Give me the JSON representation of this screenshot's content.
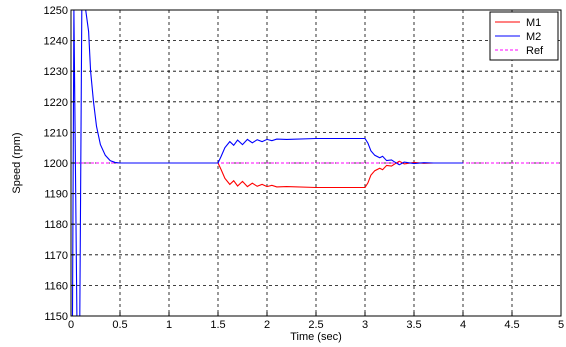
{
  "chart_data": {
    "type": "line",
    "title": "",
    "xlabel": "Time (sec)",
    "ylabel": "Speed (rpm)",
    "xlim": [
      0,
      5
    ],
    "ylim": [
      1150,
      1250
    ],
    "x_ticks": [
      "0",
      "0.5",
      "1",
      "1.5",
      "2",
      "2.5",
      "3",
      "3.5",
      "4",
      "4.5",
      "5"
    ],
    "y_ticks": [
      "1150",
      "1160",
      "1170",
      "1180",
      "1190",
      "1200",
      "1210",
      "1220",
      "1230",
      "1240",
      "1250"
    ],
    "grid": true,
    "legend_position": "top-right",
    "series": [
      {
        "name": "M1",
        "color": "#ff0000",
        "style": "solid",
        "points": [
          [
            1.5,
            1200
          ],
          [
            1.53,
            1198
          ],
          [
            1.57,
            1195
          ],
          [
            1.62,
            1193
          ],
          [
            1.66,
            1194.2
          ],
          [
            1.7,
            1192.5
          ],
          [
            1.75,
            1194
          ],
          [
            1.8,
            1192.3
          ],
          [
            1.85,
            1193.4
          ],
          [
            1.9,
            1192.4
          ],
          [
            1.95,
            1193
          ],
          [
            2.0,
            1192.3
          ],
          [
            2.05,
            1192.7
          ],
          [
            2.1,
            1192.2
          ],
          [
            2.2,
            1192.3
          ],
          [
            2.5,
            1192
          ],
          [
            2.8,
            1192
          ],
          [
            3.0,
            1192
          ],
          [
            3.03,
            1193.5
          ],
          [
            3.06,
            1196
          ],
          [
            3.1,
            1197.5
          ],
          [
            3.15,
            1198.3
          ],
          [
            3.18,
            1197.8
          ],
          [
            3.22,
            1199.2
          ],
          [
            3.27,
            1199
          ],
          [
            3.3,
            1199.6
          ],
          [
            3.35,
            1200.6
          ],
          [
            3.4,
            1199.7
          ],
          [
            3.5,
            1200.2
          ],
          [
            3.6,
            1199.9
          ],
          [
            3.7,
            1200
          ],
          [
            3.8,
            1200
          ],
          [
            3.9,
            1200
          ],
          [
            4.0,
            1200
          ]
        ]
      },
      {
        "name": "M2",
        "color": "#0000ff",
        "style": "solid",
        "points": [
          [
            0.0,
            1150
          ],
          [
            0.015,
            1150
          ],
          [
            0.03,
            1250
          ],
          [
            0.06,
            1150
          ],
          [
            0.09,
            1150
          ],
          [
            0.11,
            1250
          ],
          [
            0.15,
            1250
          ],
          [
            0.18,
            1243
          ],
          [
            0.2,
            1230
          ],
          [
            0.23,
            1220
          ],
          [
            0.26,
            1212
          ],
          [
            0.3,
            1206
          ],
          [
            0.35,
            1202.5
          ],
          [
            0.4,
            1200.8
          ],
          [
            0.45,
            1200.2
          ],
          [
            0.5,
            1200
          ],
          [
            1.0,
            1200
          ],
          [
            1.5,
            1200
          ],
          [
            1.53,
            1202
          ],
          [
            1.57,
            1205
          ],
          [
            1.62,
            1207
          ],
          [
            1.66,
            1205.8
          ],
          [
            1.7,
            1207.5
          ],
          [
            1.75,
            1206
          ],
          [
            1.8,
            1207.7
          ],
          [
            1.85,
            1206.6
          ],
          [
            1.9,
            1207.6
          ],
          [
            1.95,
            1207
          ],
          [
            2.0,
            1207.7
          ],
          [
            2.05,
            1207.3
          ],
          [
            2.1,
            1207.8
          ],
          [
            2.2,
            1207.7
          ],
          [
            2.5,
            1208
          ],
          [
            2.8,
            1208
          ],
          [
            3.0,
            1208
          ],
          [
            3.03,
            1206.5
          ],
          [
            3.06,
            1204
          ],
          [
            3.1,
            1202.5
          ],
          [
            3.15,
            1201.7
          ],
          [
            3.18,
            1202.2
          ],
          [
            3.22,
            1200.8
          ],
          [
            3.27,
            1201
          ],
          [
            3.3,
            1200.4
          ],
          [
            3.35,
            1199.4
          ],
          [
            3.4,
            1200.3
          ],
          [
            3.5,
            1199.8
          ],
          [
            3.6,
            1200.1
          ],
          [
            3.7,
            1200
          ],
          [
            3.8,
            1200
          ],
          [
            3.9,
            1200
          ],
          [
            4.0,
            1200
          ]
        ]
      },
      {
        "name": "Ref",
        "color": "#ff00ff",
        "style": "dashed",
        "points": [
          [
            0,
            1200
          ],
          [
            5,
            1200
          ]
        ]
      }
    ]
  }
}
